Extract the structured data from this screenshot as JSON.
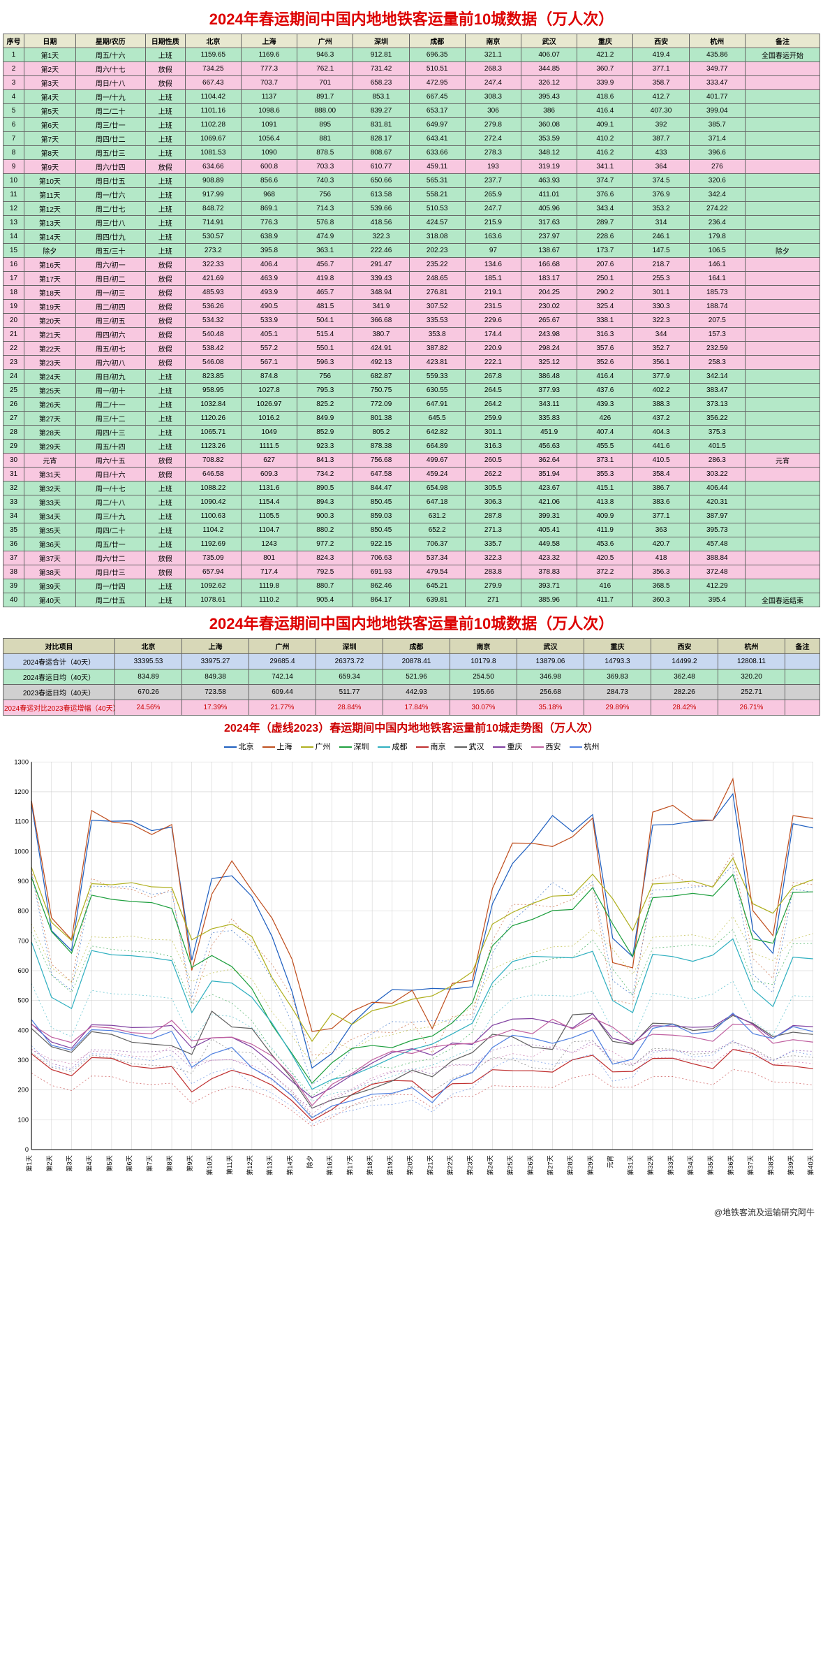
{
  "title_main": "2024年春运期间中国内地地铁客运量前10城数据（万人次）",
  "header": [
    "序号",
    "日期",
    "星期/农历",
    "日期性质",
    "北京",
    "上海",
    "广州",
    "深圳",
    "成都",
    "南京",
    "武汉",
    "重庆",
    "西安",
    "杭州",
    "备注"
  ],
  "colors": {
    "work_bg": "#b4e8c8",
    "rest_bg": "#f8c8e0",
    "header_bg": "#e8e8d0",
    "border": "#666666",
    "title": "#dd0000"
  },
  "rows": [
    {
      "i": 1,
      "d": "第1天",
      "w": "周五/十六",
      "t": "上班",
      "bj": "1159.65",
      "sh": "1169.6",
      "gz": "946.3",
      "sz": "912.81",
      "cd": "696.35",
      "nj": "321.1",
      "wh": "406.07",
      "cq": "421.2",
      "xa": "419.4",
      "hz": "435.86",
      "n": "全国春运开始"
    },
    {
      "i": 2,
      "d": "第2天",
      "w": "周六/十七",
      "t": "放假",
      "bj": "734.25",
      "sh": "777.3",
      "gz": "762.1",
      "sz": "731.42",
      "cd": "510.51",
      "nj": "268.3",
      "wh": "344.85",
      "cq": "360.7",
      "xa": "377.1",
      "hz": "349.77",
      "n": ""
    },
    {
      "i": 3,
      "d": "第3天",
      "w": "周日/十八",
      "t": "放假",
      "bj": "667.43",
      "sh": "703.7",
      "gz": "701",
      "sz": "658.23",
      "cd": "472.95",
      "nj": "247.4",
      "wh": "326.12",
      "cq": "339.9",
      "xa": "358.7",
      "hz": "333.47",
      "n": ""
    },
    {
      "i": 4,
      "d": "第4天",
      "w": "周一/十九",
      "t": "上班",
      "bj": "1104.42",
      "sh": "1137",
      "gz": "891.7",
      "sz": "853.1",
      "cd": "667.45",
      "nj": "308.3",
      "wh": "395.43",
      "cq": "418.6",
      "xa": "412.7",
      "hz": "401.77",
      "n": ""
    },
    {
      "i": 5,
      "d": "第5天",
      "w": "周二/二十",
      "t": "上班",
      "bj": "1101.16",
      "sh": "1098.6",
      "gz": "888.00",
      "sz": "839.27",
      "cd": "653.17",
      "nj": "306",
      "wh": "386",
      "cq": "416.4",
      "xa": "407.30",
      "hz": "399.04",
      "n": ""
    },
    {
      "i": 6,
      "d": "第6天",
      "w": "周三/廿一",
      "t": "上班",
      "bj": "1102.28",
      "sh": "1091",
      "gz": "895",
      "sz": "831.81",
      "cd": "649.97",
      "nj": "279.8",
      "wh": "360.08",
      "cq": "409.1",
      "xa": "392",
      "hz": "385.7",
      "n": ""
    },
    {
      "i": 7,
      "d": "第7天",
      "w": "周四/廿二",
      "t": "上班",
      "bj": "1069.67",
      "sh": "1056.4",
      "gz": "881",
      "sz": "828.17",
      "cd": "643.41",
      "nj": "272.4",
      "wh": "353.59",
      "cq": "410.2",
      "xa": "387.7",
      "hz": "371.4",
      "n": ""
    },
    {
      "i": 8,
      "d": "第8天",
      "w": "周五/廿三",
      "t": "上班",
      "bj": "1081.53",
      "sh": "1090",
      "gz": "878.5",
      "sz": "808.67",
      "cd": "633.66",
      "nj": "278.3",
      "wh": "348.12",
      "cq": "416.2",
      "xa": "433",
      "hz": "396.6",
      "n": ""
    },
    {
      "i": 9,
      "d": "第9天",
      "w": "周六/廿四",
      "t": "放假",
      "bj": "634.66",
      "sh": "600.8",
      "gz": "703.3",
      "sz": "610.77",
      "cd": "459.11",
      "nj": "193",
      "wh": "319.19",
      "cq": "341.1",
      "xa": "364",
      "hz": "276",
      "n": ""
    },
    {
      "i": 10,
      "d": "第10天",
      "w": "周日/廿五",
      "t": "上班",
      "bj": "908.89",
      "sh": "856.6",
      "gz": "740.3",
      "sz": "650.66",
      "cd": "565.31",
      "nj": "237.7",
      "wh": "463.93",
      "cq": "374.7",
      "xa": "374.5",
      "hz": "320.6",
      "n": ""
    },
    {
      "i": 11,
      "d": "第11天",
      "w": "周一/廿六",
      "t": "上班",
      "bj": "917.99",
      "sh": "968",
      "gz": "756",
      "sz": "613.58",
      "cd": "558.21",
      "nj": "265.9",
      "wh": "411.01",
      "cq": "376.6",
      "xa": "376.9",
      "hz": "342.4",
      "n": ""
    },
    {
      "i": 12,
      "d": "第12天",
      "w": "周二/廿七",
      "t": "上班",
      "bj": "848.72",
      "sh": "869.1",
      "gz": "714.3",
      "sz": "539.66",
      "cd": "510.53",
      "nj": "247.7",
      "wh": "405.96",
      "cq": "343.4",
      "xa": "353.2",
      "hz": "274.22",
      "n": ""
    },
    {
      "i": 13,
      "d": "第13天",
      "w": "周三/廿八",
      "t": "上班",
      "bj": "714.91",
      "sh": "776.3",
      "gz": "576.8",
      "sz": "418.56",
      "cd": "424.57",
      "nj": "215.9",
      "wh": "317.63",
      "cq": "289.7",
      "xa": "314",
      "hz": "236.4",
      "n": ""
    },
    {
      "i": 14,
      "d": "第14天",
      "w": "周四/廿九",
      "t": "上班",
      "bj": "530.57",
      "sh": "638.9",
      "gz": "474.9",
      "sz": "322.3",
      "cd": "318.08",
      "nj": "163.6",
      "wh": "237.97",
      "cq": "228.6",
      "xa": "246.1",
      "hz": "179.8",
      "n": ""
    },
    {
      "i": 15,
      "d": "除夕",
      "w": "周五/三十",
      "t": "上班",
      "bj": "273.2",
      "sh": "395.8",
      "gz": "363.1",
      "sz": "222.46",
      "cd": "202.23",
      "nj": "97",
      "wh": "138.67",
      "cq": "173.7",
      "xa": "147.5",
      "hz": "106.5",
      "n": "除夕"
    },
    {
      "i": 16,
      "d": "第16天",
      "w": "周六/初一",
      "t": "放假",
      "bj": "322.33",
      "sh": "406.4",
      "gz": "456.7",
      "sz": "291.47",
      "cd": "235.22",
      "nj": "134.6",
      "wh": "166.68",
      "cq": "207.6",
      "xa": "218.7",
      "hz": "146.1",
      "n": ""
    },
    {
      "i": 17,
      "d": "第17天",
      "w": "周日/初二",
      "t": "放假",
      "bj": "421.69",
      "sh": "463.9",
      "gz": "419.8",
      "sz": "339.43",
      "cd": "248.65",
      "nj": "185.1",
      "wh": "183.17",
      "cq": "250.1",
      "xa": "255.3",
      "hz": "164.1",
      "n": ""
    },
    {
      "i": 18,
      "d": "第18天",
      "w": "周一/初三",
      "t": "放假",
      "bj": "485.93",
      "sh": "493.9",
      "gz": "465.7",
      "sz": "348.94",
      "cd": "276.81",
      "nj": "219.1",
      "wh": "204.25",
      "cq": "290.2",
      "xa": "301.1",
      "hz": "185.73",
      "n": ""
    },
    {
      "i": 19,
      "d": "第19天",
      "w": "周二/初四",
      "t": "放假",
      "bj": "536.26",
      "sh": "490.5",
      "gz": "481.5",
      "sz": "341.9",
      "cd": "307.52",
      "nj": "231.5",
      "wh": "230.02",
      "cq": "325.4",
      "xa": "330.3",
      "hz": "188.74",
      "n": ""
    },
    {
      "i": 20,
      "d": "第20天",
      "w": "周三/初五",
      "t": "放假",
      "bj": "534.32",
      "sh": "533.9",
      "gz": "504.1",
      "sz": "366.68",
      "cd": "335.53",
      "nj": "229.6",
      "wh": "265.67",
      "cq": "338.1",
      "xa": "322.3",
      "hz": "207.5",
      "n": ""
    },
    {
      "i": 21,
      "d": "第21天",
      "w": "周四/初六",
      "t": "放假",
      "bj": "540.48",
      "sh": "405.1",
      "gz": "515.4",
      "sz": "380.7",
      "cd": "353.8",
      "nj": "174.4",
      "wh": "243.98",
      "cq": "316.3",
      "xa": "344",
      "hz": "157.3",
      "n": ""
    },
    {
      "i": 22,
      "d": "第22天",
      "w": "周五/初七",
      "t": "放假",
      "bj": "538.42",
      "sh": "557.2",
      "gz": "550.1",
      "sz": "424.91",
      "cd": "387.82",
      "nj": "220.9",
      "wh": "298.24",
      "cq": "357.6",
      "xa": "352.7",
      "hz": "232.59",
      "n": ""
    },
    {
      "i": 23,
      "d": "第23天",
      "w": "周六/初八",
      "t": "放假",
      "bj": "546.08",
      "sh": "567.1",
      "gz": "596.3",
      "sz": "492.13",
      "cd": "423.81",
      "nj": "222.1",
      "wh": "325.12",
      "cq": "352.6",
      "xa": "356.1",
      "hz": "258.3",
      "n": ""
    },
    {
      "i": 24,
      "d": "第24天",
      "w": "周日/初九",
      "t": "上班",
      "bj": "823.85",
      "sh": "874.8",
      "gz": "756",
      "sz": "682.87",
      "cd": "559.33",
      "nj": "267.8",
      "wh": "386.48",
      "cq": "416.4",
      "xa": "377.9",
      "hz": "342.14",
      "n": ""
    },
    {
      "i": 25,
      "d": "第25天",
      "w": "周一/初十",
      "t": "上班",
      "bj": "958.95",
      "sh": "1027.8",
      "gz": "795.3",
      "sz": "750.75",
      "cd": "630.55",
      "nj": "264.5",
      "wh": "377.93",
      "cq": "437.6",
      "xa": "402.2",
      "hz": "383.47",
      "n": ""
    },
    {
      "i": 26,
      "d": "第26天",
      "w": "周二/十一",
      "t": "上班",
      "bj": "1032.84",
      "sh": "1026.97",
      "gz": "825.2",
      "sz": "772.09",
      "cd": "647.91",
      "nj": "264.2",
      "wh": "343.11",
      "cq": "439.3",
      "xa": "388.3",
      "hz": "373.13",
      "n": ""
    },
    {
      "i": 27,
      "d": "第27天",
      "w": "周三/十二",
      "t": "上班",
      "bj": "1120.26",
      "sh": "1016.2",
      "gz": "849.9",
      "sz": "801.38",
      "cd": "645.5",
      "nj": "259.9",
      "wh": "335.83",
      "cq": "426",
      "xa": "437.2",
      "hz": "356.22",
      "n": ""
    },
    {
      "i": 28,
      "d": "第28天",
      "w": "周四/十三",
      "t": "上班",
      "bj": "1065.71",
      "sh": "1049",
      "gz": "852.9",
      "sz": "805.2",
      "cd": "642.82",
      "nj": "301.1",
      "wh": "451.9",
      "cq": "407.4",
      "xa": "404.3",
      "hz": "375.3",
      "n": ""
    },
    {
      "i": 29,
      "d": "第29天",
      "w": "周五/十四",
      "t": "上班",
      "bj": "1123.26",
      "sh": "1111.5",
      "gz": "923.3",
      "sz": "878.38",
      "cd": "664.89",
      "nj": "316.3",
      "wh": "456.63",
      "cq": "455.5",
      "xa": "441.6",
      "hz": "401.5",
      "n": ""
    },
    {
      "i": 30,
      "d": "元宵",
      "w": "周六/十五",
      "t": "放假",
      "bj": "708.82",
      "sh": "627",
      "gz": "841.3",
      "sz": "756.68",
      "cd": "499.67",
      "nj": "260.5",
      "wh": "362.64",
      "cq": "373.1",
      "xa": "410.5",
      "hz": "286.3",
      "n": "元宵"
    },
    {
      "i": 31,
      "d": "第31天",
      "w": "周日/十六",
      "t": "放假",
      "bj": "646.58",
      "sh": "609.3",
      "gz": "734.2",
      "sz": "647.58",
      "cd": "459.24",
      "nj": "262.2",
      "wh": "351.94",
      "cq": "355.3",
      "xa": "358.4",
      "hz": "303.22",
      "n": ""
    },
    {
      "i": 32,
      "d": "第32天",
      "w": "周一/十七",
      "t": "上班",
      "bj": "1088.22",
      "sh": "1131.6",
      "gz": "890.5",
      "sz": "844.47",
      "cd": "654.98",
      "nj": "305.5",
      "wh": "423.67",
      "cq": "415.1",
      "xa": "386.7",
      "hz": "406.44",
      "n": ""
    },
    {
      "i": 33,
      "d": "第33天",
      "w": "周二/十八",
      "t": "上班",
      "bj": "1090.42",
      "sh": "1154.4",
      "gz": "894.3",
      "sz": "850.45",
      "cd": "647.18",
      "nj": "306.3",
      "wh": "421.06",
      "cq": "413.8",
      "xa": "383.6",
      "hz": "420.31",
      "n": ""
    },
    {
      "i": 34,
      "d": "第34天",
      "w": "周三/十九",
      "t": "上班",
      "bj": "1100.63",
      "sh": "1105.5",
      "gz": "900.3",
      "sz": "859.03",
      "cd": "631.2",
      "nj": "287.8",
      "wh": "399.31",
      "cq": "409.9",
      "xa": "377.1",
      "hz": "387.97",
      "n": ""
    },
    {
      "i": 35,
      "d": "第35天",
      "w": "周四/二十",
      "t": "上班",
      "bj": "1104.2",
      "sh": "1104.7",
      "gz": "880.2",
      "sz": "850.45",
      "cd": "652.2",
      "nj": "271.3",
      "wh": "405.41",
      "cq": "411.9",
      "xa": "363",
      "hz": "395.73",
      "n": ""
    },
    {
      "i": 36,
      "d": "第36天",
      "w": "周五/廿一",
      "t": "上班",
      "bj": "1192.69",
      "sh": "1243",
      "gz": "977.2",
      "sz": "922.15",
      "cd": "706.37",
      "nj": "335.7",
      "wh": "449.58",
      "cq": "453.6",
      "xa": "420.7",
      "hz": "457.48",
      "n": ""
    },
    {
      "i": 37,
      "d": "第37天",
      "w": "周六/廿二",
      "t": "放假",
      "bj": "735.09",
      "sh": "801",
      "gz": "824.3",
      "sz": "706.63",
      "cd": "537.34",
      "nj": "322.3",
      "wh": "423.32",
      "cq": "420.5",
      "xa": "418",
      "hz": "388.84",
      "n": ""
    },
    {
      "i": 38,
      "d": "第38天",
      "w": "周日/廿三",
      "t": "放假",
      "bj": "657.94",
      "sh": "717.4",
      "gz": "792.5",
      "sz": "691.93",
      "cd": "479.54",
      "nj": "283.8",
      "wh": "378.83",
      "cq": "372.2",
      "xa": "356.3",
      "hz": "372.48",
      "n": ""
    },
    {
      "i": 39,
      "d": "第39天",
      "w": "周一/廿四",
      "t": "上班",
      "bj": "1092.62",
      "sh": "1119.8",
      "gz": "880.7",
      "sz": "862.46",
      "cd": "645.21",
      "nj": "279.9",
      "wh": "393.71",
      "cq": "416",
      "xa": "368.5",
      "hz": "412.29",
      "n": ""
    },
    {
      "i": 40,
      "d": "第40天",
      "w": "周二/廿五",
      "t": "上班",
      "bj": "1078.61",
      "sh": "1110.2",
      "gz": "905.4",
      "sz": "864.17",
      "cd": "639.81",
      "nj": "271",
      "wh": "385.96",
      "cq": "411.7",
      "xa": "360.3",
      "hz": "395.4",
      "n": "全国春运结束"
    }
  ],
  "summary": {
    "label_col": "对比项目",
    "cities": [
      "北京",
      "上海",
      "广州",
      "深圳",
      "成都",
      "南京",
      "武汉",
      "重庆",
      "西安",
      "杭州",
      "备注"
    ],
    "rows": [
      {
        "l": "2024春运合计（40天）",
        "v": [
          "33395.53",
          "33975.27",
          "29685.4",
          "26373.72",
          "20878.41",
          "10179.8",
          "13879.06",
          "14793.3",
          "14499.2",
          "12808.11",
          ""
        ],
        "cls": "sum-b"
      },
      {
        "l": "2024春运日均（40天）",
        "v": [
          "834.89",
          "849.38",
          "742.14",
          "659.34",
          "521.96",
          "254.50",
          "346.98",
          "369.83",
          "362.48",
          "320.20",
          ""
        ],
        "cls": "sum-g"
      },
      {
        "l": "2023春运日均（40天）",
        "v": [
          "670.26",
          "723.58",
          "609.44",
          "511.77",
          "442.93",
          "195.66",
          "256.68",
          "284.73",
          "282.26",
          "252.71",
          ""
        ],
        "cls": "sum-gr"
      },
      {
        "l": "2024春运对比2023春运增幅（40天）",
        "v": [
          "24.56%",
          "17.39%",
          "21.77%",
          "28.84%",
          "17.84%",
          "30.07%",
          "35.18%",
          "29.89%",
          "28.42%",
          "26.71%",
          ""
        ],
        "cls": "sum-r"
      }
    ]
  },
  "chart": {
    "title": "2024年（虚线2023）春运期间中国内地地铁客运量前10城走势图（万人次）",
    "type": "line",
    "ylim": [
      0,
      1300
    ],
    "ytick_step": 100,
    "xlabels": [
      "第1天",
      "第2天",
      "第3天",
      "第4天",
      "第5天",
      "第6天",
      "第7天",
      "第8天",
      "第9天",
      "第10天",
      "第11天",
      "第12天",
      "第13天",
      "第14天",
      "除夕",
      "第16天",
      "第17天",
      "第18天",
      "第19天",
      "第20天",
      "第21天",
      "第22天",
      "第23天",
      "第24天",
      "第25天",
      "第26天",
      "第27天",
      "第28天",
      "第29天",
      "元宵",
      "第31天",
      "第32天",
      "第33天",
      "第34天",
      "第35天",
      "第36天",
      "第37天",
      "第38天",
      "第39天",
      "第40天"
    ],
    "series": [
      {
        "name": "北京",
        "color": "#2060c0",
        "k": "bj"
      },
      {
        "name": "上海",
        "color": "#c05020",
        "k": "sh"
      },
      {
        "name": "广州",
        "color": "#b0b020",
        "k": "gz"
      },
      {
        "name": "深圳",
        "color": "#20a040",
        "k": "sz"
      },
      {
        "name": "成都",
        "color": "#30b0c0",
        "k": "cd"
      },
      {
        "name": "南京",
        "color": "#c03030",
        "k": "nj"
      },
      {
        "name": "武汉",
        "color": "#606060",
        "k": "wh"
      },
      {
        "name": "重庆",
        "color": "#8040a0",
        "k": "cq"
      },
      {
        "name": "西安",
        "color": "#c060a0",
        "k": "xa"
      },
      {
        "name": "杭州",
        "color": "#5080e0",
        "k": "hz"
      }
    ],
    "grid_color": "#cccccc",
    "background_color": "#ffffff",
    "line_width": 1.2,
    "font_size": 9
  },
  "footer": "@地铁客流及运输研究阿牛"
}
